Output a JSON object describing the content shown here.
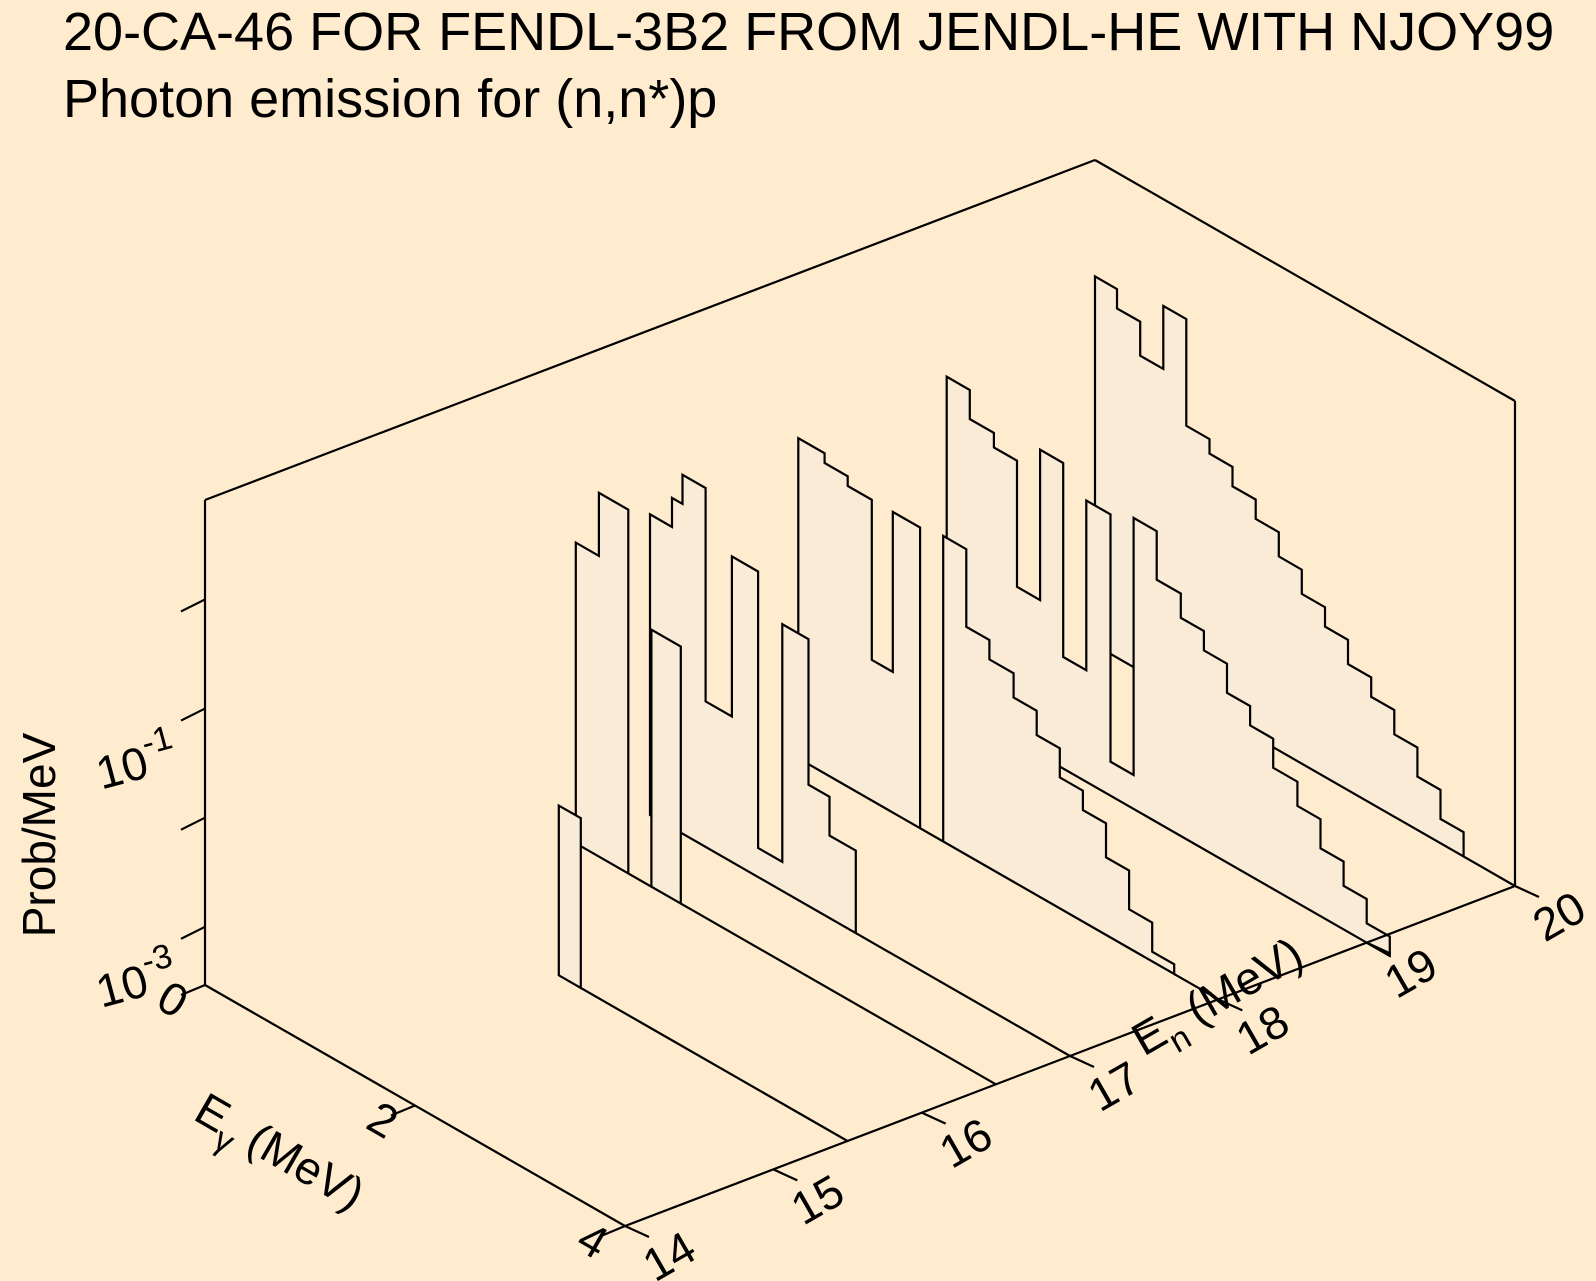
{
  "title": "20-CA-46 FOR FENDL-3B2 FROM JENDL-HE WITH NJOY99",
  "subtitle": "Photon emission for (n,n*)p",
  "colors": {
    "background": "#FFEBCD",
    "fill": "#FAEBD7",
    "line": "#000000"
  },
  "chart_data": {
    "type": "3d-step-waterfall",
    "title": "20-CA-46 FOR FENDL-3B2 FROM JENDL-HE WITH NJOY99",
    "subtitle": "Photon emission for (n,n*)p",
    "z_label": "Prob/MeV",
    "z_scale": "log",
    "z_ticks": [
      {
        "value": 0.001,
        "base": "10",
        "exp": "-3"
      },
      {
        "value": 0.1,
        "base": "10",
        "exp": "-1"
      }
    ],
    "x_label": {
      "main": "E",
      "sub": "γ",
      "rest": " (MeV)"
    },
    "x_range": [
      0,
      4
    ],
    "x_ticks": [
      "0",
      "2",
      "4"
    ],
    "y_label": {
      "main": "E",
      "sub": "n",
      "rest": " (MeV)"
    },
    "y_range": [
      14,
      20
    ],
    "y_ticks": [
      "14",
      "15",
      "16",
      "17",
      "18",
      "19",
      "20"
    ],
    "series": [
      {
        "En": 15.5,
        "x0": 1.25,
        "steps": [
          {
            "dx": 0.21,
            "z": 0.35
          }
        ]
      },
      {
        "En": 16.5,
        "x0": 0.0,
        "steps": [
          {
            "dx": 0.22,
            "z": 0.62
          },
          {
            "dx": 0.28,
            "z": 0.75
          },
          {
            "dx": 0.22,
            "z": 0.0
          },
          {
            "dx": 0.28,
            "z": 0.53
          },
          {
            "dx": 0.1,
            "z": 0.0
          }
        ]
      },
      {
        "En": 17.0,
        "x0": 0.0,
        "steps": [
          {
            "dx": 0.21,
            "z": 0.62
          },
          {
            "dx": 0.1,
            "z": 0.68
          },
          {
            "dx": 0.22,
            "z": 0.74
          },
          {
            "dx": 0.25,
            "z": 0.3
          },
          {
            "dx": 0.25,
            "z": 0.63
          },
          {
            "dx": 0.23,
            "z": 0.06
          },
          {
            "dx": 0.25,
            "z": 0.55
          },
          {
            "dx": 0.2,
            "z": 0.25
          },
          {
            "dx": 0.25,
            "z": 0.17
          }
        ]
      },
      {
        "En": 18.0,
        "x0": 0.0,
        "steps": [
          {
            "dx": 0.25,
            "z": 0.66
          },
          {
            "dx": 0.22,
            "z": 0.64
          },
          {
            "dx": 0.23,
            "z": 0.62
          },
          {
            "dx": 0.2,
            "z": 0.29
          },
          {
            "dx": 0.26,
            "z": 0.62
          },
          {
            "dx": 0.22,
            "z": 0.0
          },
          {
            "dx": 0.22,
            "z": 0.63
          },
          {
            "dx": 0.22,
            "z": 0.47
          },
          {
            "dx": 0.23,
            "z": 0.43
          },
          {
            "dx": 0.22,
            "z": 0.38
          },
          {
            "dx": 0.22,
            "z": 0.33
          },
          {
            "dx": 0.22,
            "z": 0.27
          },
          {
            "dx": 0.22,
            "z": 0.23
          },
          {
            "dx": 0.22,
            "z": 0.16
          },
          {
            "dx": 0.22,
            "z": 0.08
          },
          {
            "dx": 0.21,
            "z": 0.02
          }
        ]
      },
      {
        "En": 19.0,
        "x0": 0.0,
        "steps": [
          {
            "dx": 0.22,
            "z": 0.67
          },
          {
            "dx": 0.23,
            "z": 0.61
          },
          {
            "dx": 0.22,
            "z": 0.58
          },
          {
            "dx": 0.22,
            "z": 0.32
          },
          {
            "dx": 0.22,
            "z": 0.63
          },
          {
            "dx": 0.22,
            "z": 0.23
          },
          {
            "dx": 0.23,
            "z": 0.58
          },
          {
            "dx": 0.22,
            "z": 0.07
          },
          {
            "dx": 0.22,
            "z": 0.6
          },
          {
            "dx": 0.23,
            "z": 0.5
          },
          {
            "dx": 0.22,
            "z": 0.45
          },
          {
            "dx": 0.22,
            "z": 0.41
          },
          {
            "dx": 0.22,
            "z": 0.35
          },
          {
            "dx": 0.22,
            "z": 0.31
          },
          {
            "dx": 0.23,
            "z": 0.25
          },
          {
            "dx": 0.22,
            "z": 0.2
          },
          {
            "dx": 0.22,
            "z": 0.14
          },
          {
            "dx": 0.22,
            "z": 0.09
          },
          {
            "dx": 0.22,
            "z": 0.04
          }
        ]
      },
      {
        "En": 20.0,
        "x0": 0.0,
        "steps": [
          {
            "dx": 0.21,
            "z": 0.76
          },
          {
            "dx": 0.22,
            "z": 0.72
          },
          {
            "dx": 0.22,
            "z": 0.65
          },
          {
            "dx": 0.22,
            "z": 0.78
          },
          {
            "dx": 0.22,
            "z": 0.56
          },
          {
            "dx": 0.22,
            "z": 0.53
          },
          {
            "dx": 0.22,
            "z": 0.49
          },
          {
            "dx": 0.22,
            "z": 0.45
          },
          {
            "dx": 0.22,
            "z": 0.4
          },
          {
            "dx": 0.22,
            "z": 0.35
          },
          {
            "dx": 0.22,
            "z": 0.31
          },
          {
            "dx": 0.22,
            "z": 0.26
          },
          {
            "dx": 0.22,
            "z": 0.22
          },
          {
            "dx": 0.22,
            "z": 0.17
          },
          {
            "dx": 0.22,
            "z": 0.11
          },
          {
            "dx": 0.22,
            "z": 0.05
          }
        ]
      }
    ]
  }
}
